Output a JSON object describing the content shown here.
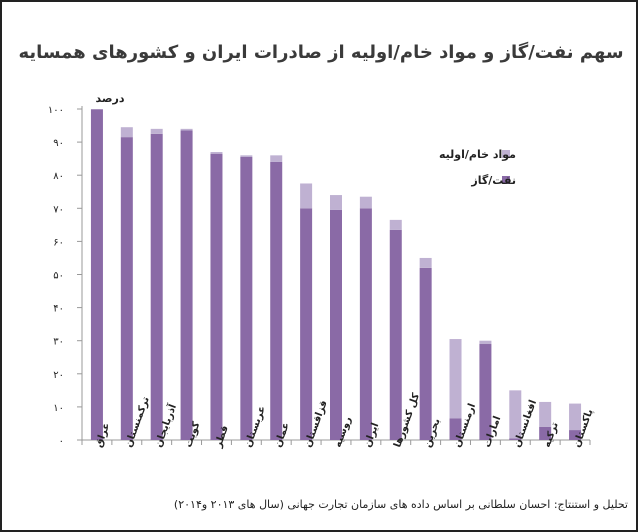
{
  "chart_data": {
    "type": "bar",
    "stacked": true,
    "title": "سهم نفت/گاز و مواد خام/اولیه از صادرات ایران و کشورهای همسایه",
    "ylabel": "درصد",
    "xlabel": "",
    "ylim": [
      0,
      100
    ],
    "yticks": [
      "۰",
      "۱۰",
      "۲۰",
      "۳۰",
      "۴۰",
      "۵۰",
      "۶۰",
      "۷۰",
      "۸۰",
      "۹۰",
      "۱۰۰"
    ],
    "grid": false,
    "legend_position": "right",
    "categories": [
      "عراق",
      "ترکمنستان",
      "آذربایجان",
      "کویت",
      "قطر",
      "عربستان",
      "عمان",
      "قزاقستان",
      "روسیه",
      "ایران",
      "کل کشورها",
      "بحرین",
      "ارمنستان",
      "امارات",
      "افغانستان",
      "ترکیه",
      "پاکستان"
    ],
    "series": [
      {
        "name": "نفت/گاز",
        "color": "#8a6aa6",
        "values": [
          99.9,
          91.5,
          92.5,
          93.5,
          86.5,
          85.5,
          84,
          70,
          69.5,
          70,
          63.5,
          52,
          6.5,
          29,
          0.5,
          4,
          3
        ]
      },
      {
        "name": "مواد خام/اولیه",
        "color": "#bfb1d2",
        "values": [
          0.1,
          3,
          1.5,
          0.5,
          0.5,
          0.5,
          2,
          7.5,
          4.5,
          3.5,
          3,
          3,
          24,
          1,
          14.5,
          7.5,
          8
        ]
      }
    ]
  },
  "colors": {
    "oil_gas": "#8a6aa6",
    "raw_materials": "#bfb1d2",
    "axis": "#888888"
  },
  "credit": "تحلیل و استنتاج: احسان سلطانی بر اساس داده های سازمان تجارت جهانی (سال های ۲۰۱۳ و۲۰۱۴)"
}
